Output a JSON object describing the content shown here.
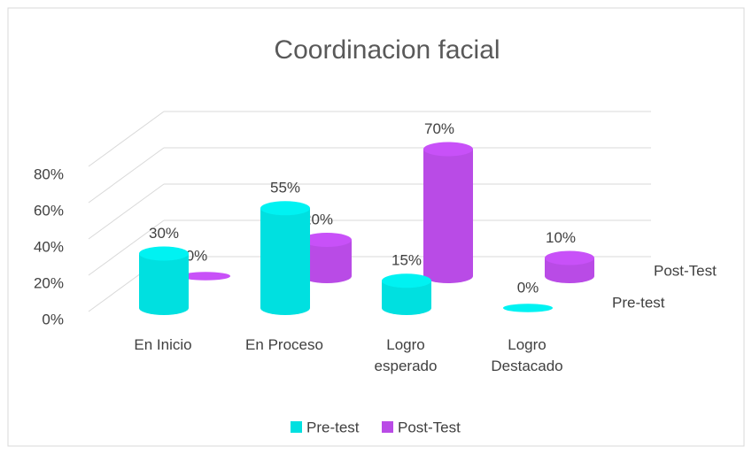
{
  "chart_data": {
    "type": "bar",
    "title": "Coordinacion  facial",
    "categories": [
      "En Inicio",
      "En Proceso",
      "Logro esperado",
      "Logro Destacado"
    ],
    "series": [
      {
        "name": "Pre-test",
        "color": "#00e0e0",
        "values": [
          30,
          55,
          15,
          0
        ],
        "value_labels": [
          "30%",
          "55%",
          "15%",
          "0%"
        ]
      },
      {
        "name": "Post-Test",
        "color": "#b94be6",
        "values": [
          0,
          20,
          70,
          10
        ],
        "value_labels": [
          "0%",
          "20%",
          "70%",
          "10%"
        ]
      }
    ],
    "ylim": [
      0,
      80
    ],
    "yticks": [
      {
        "value": 0,
        "label": "0%"
      },
      {
        "value": 20,
        "label": "20%"
      },
      {
        "value": 40,
        "label": "40%"
      },
      {
        "value": 60,
        "label": "60%"
      },
      {
        "value": 80,
        "label": "80%"
      }
    ],
    "grid": true,
    "legend": "bottom"
  }
}
